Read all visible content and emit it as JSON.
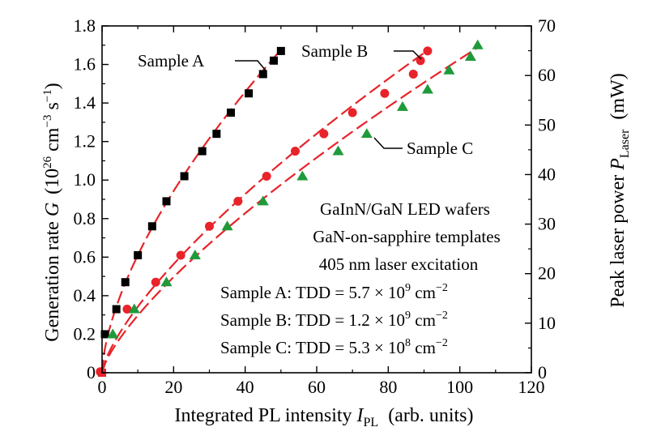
{
  "chart_data": {
    "type": "scatter",
    "xlabel": {
      "main": "Integrated PL intensity ",
      "var": "I",
      "sub": "PL",
      "unit": "(arb. units)"
    },
    "ylabel_left": {
      "main": "Generation rate ",
      "var": "G",
      "unit_pre": "(10",
      "unit_exp": "26",
      "unit_mid": " cm",
      "unit_exp2": "−3",
      "unit_mid2": " s",
      "unit_exp3": "−1",
      "unit_post": ")"
    },
    "ylabel_right": {
      "main": "Peak laser power ",
      "var": "P",
      "sub": "Laser",
      "unit": "(mW)"
    },
    "xlim": [
      0,
      120
    ],
    "ylim_left": [
      0,
      1.8
    ],
    "ylim_right": [
      0,
      70
    ],
    "x_ticks": [
      "0",
      "20",
      "40",
      "60",
      "80",
      "100",
      "120"
    ],
    "y_ticks_left": [
      "0",
      "0.2",
      "0.4",
      "0.6",
      "0.8",
      "1.0",
      "1.2",
      "1.4",
      "1.6",
      "1.8"
    ],
    "y_ticks_right": [
      "0",
      "10",
      "20",
      "30",
      "40",
      "50",
      "60",
      "70"
    ],
    "series": [
      {
        "name": "Sample A",
        "color": "#000000",
        "marker": "square",
        "points": [
          [
            0.8,
            0.2
          ],
          [
            4,
            0.33
          ],
          [
            6.5,
            0.47
          ],
          [
            10,
            0.61
          ],
          [
            14,
            0.76
          ],
          [
            18,
            0.89
          ],
          [
            23,
            1.02
          ],
          [
            28,
            1.15
          ],
          [
            32,
            1.24
          ],
          [
            36,
            1.35
          ],
          [
            41,
            1.45
          ],
          [
            45,
            1.55
          ],
          [
            48,
            1.62
          ],
          [
            50,
            1.67
          ]
        ],
        "fit": {
          "a": 0.1437,
          "b": 0.628
        }
      },
      {
        "name": "Sample B",
        "color": "#e8232a",
        "marker": "circle",
        "points": [
          [
            -0.5,
            0.005
          ],
          [
            7,
            0.33
          ],
          [
            15,
            0.47
          ],
          [
            22,
            0.61
          ],
          [
            30,
            0.76
          ],
          [
            38,
            0.89
          ],
          [
            46,
            1.02
          ],
          [
            54,
            1.15
          ],
          [
            62,
            1.24
          ],
          [
            70,
            1.35
          ],
          [
            79,
            1.45
          ],
          [
            87,
            1.55
          ],
          [
            89,
            1.62
          ],
          [
            91,
            1.67
          ]
        ],
        "fit": {
          "a": 0.0656,
          "b": 0.718
        }
      },
      {
        "name": "Sample C",
        "color": "#1f9a3a",
        "marker": "triangle",
        "points": [
          [
            3,
            0.2
          ],
          [
            9,
            0.33
          ],
          [
            18,
            0.47
          ],
          [
            26,
            0.61
          ],
          [
            35,
            0.76
          ],
          [
            45,
            0.89
          ],
          [
            56,
            1.02
          ],
          [
            66,
            1.15
          ],
          [
            74,
            1.24
          ],
          [
            84,
            1.38
          ],
          [
            91,
            1.47
          ],
          [
            97,
            1.57
          ],
          [
            103,
            1.64
          ],
          [
            105,
            1.7
          ]
        ],
        "fit": {
          "a": 0.0544,
          "b": 0.738
        }
      }
    ],
    "series_labels": [
      "Sample A",
      "Sample B",
      "Sample C"
    ],
    "annotation_lines": [
      "GaInN/GaN LED wafers",
      "GaN-on-sapphire templates",
      "405 nm laser excitation"
    ],
    "tdd_lines": [
      {
        "label": "Sample A: TDD = 5.7 × 10",
        "exp": "9",
        "unit": " cm",
        "unit_exp": "−2"
      },
      {
        "label": "Sample B: TDD = 1.2 × 10",
        "exp": "9",
        "unit": " cm",
        "unit_exp": "−2"
      },
      {
        "label": "Sample C: TDD = 5.3 × 10",
        "exp": "8",
        "unit": " cm",
        "unit_exp": "−2"
      }
    ]
  }
}
